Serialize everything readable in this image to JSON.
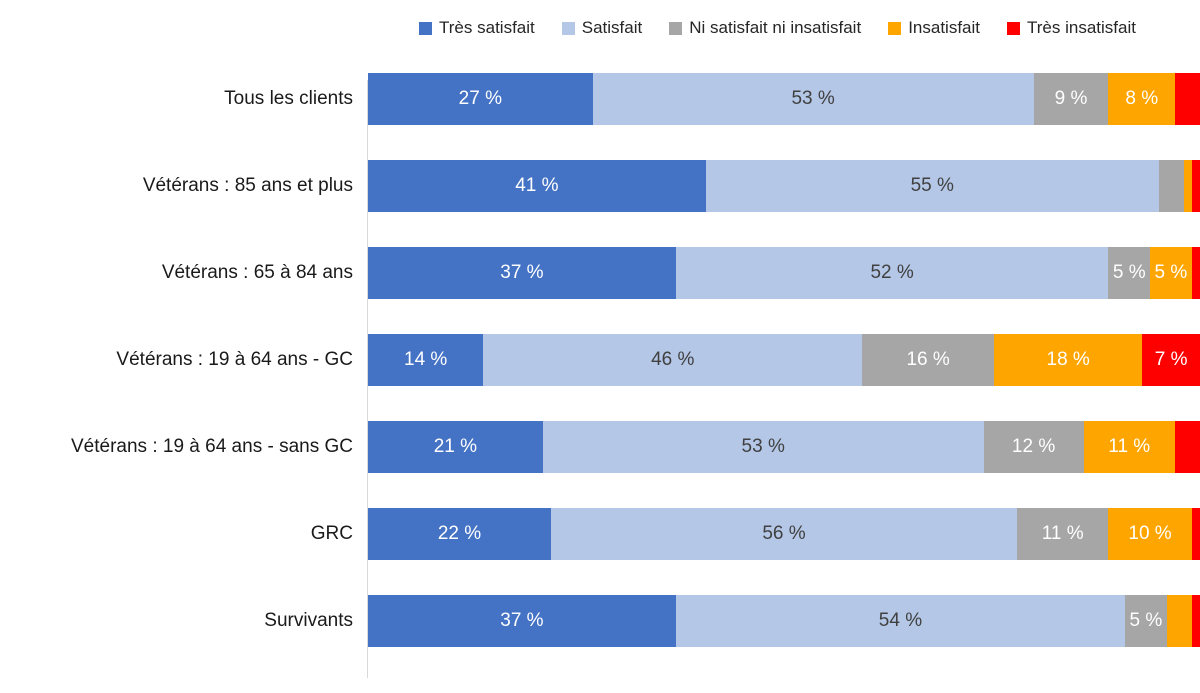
{
  "page": {
    "background": "#FFFFFF"
  },
  "legend": [
    {
      "label": "Très satisfait",
      "color": "#4472C4",
      "text_color": "#FFFFFF"
    },
    {
      "label": "Satisfait",
      "color": "#B4C7E7",
      "text_color": "#404040"
    },
    {
      "label": "Ni satisfait ni insatisfait",
      "color": "#A6A6A6",
      "text_color": "#FFFFFF"
    },
    {
      "label": "Insatisfait",
      "color": "#FFA500",
      "text_color": "#FFFFFF"
    },
    {
      "label": "Très insatisfait",
      "color": "#FF0000",
      "text_color": "#FFFFFF"
    }
  ],
  "chart_data": {
    "type": "bar",
    "orientation": "horizontal",
    "stacked": true,
    "units": "percent",
    "xlim": [
      0,
      100
    ],
    "grid": false,
    "legend_position": "top",
    "categories": [
      "Tous les clients",
      "Vétérans : 85 ans et plus",
      "Vétérans : 65 à 84 ans",
      "Vétérans : 19 à 64 ans - GC",
      "Vétérans : 19 à 64 ans - sans GC",
      "GRC",
      "Survivants"
    ],
    "series": [
      {
        "name": "Très satisfait",
        "values": [
          27,
          41,
          37,
          14,
          21,
          22,
          37
        ],
        "labels": [
          "27 %",
          "41 %",
          "37 %",
          "14 %",
          "21 %",
          "22 %",
          "37 %"
        ]
      },
      {
        "name": "Satisfait",
        "values": [
          53,
          55,
          52,
          46,
          53,
          56,
          54
        ],
        "labels": [
          "53 %",
          "55 %",
          "52 %",
          "46 %",
          "53 %",
          "56 %",
          "54 %"
        ]
      },
      {
        "name": "Ni satisfait ni insatisfait",
        "values": [
          9,
          3,
          5,
          16,
          12,
          11,
          5
        ],
        "labels": [
          "9 %",
          "",
          "5 %",
          "16 %",
          "12 %",
          "11 %",
          "5 %"
        ]
      },
      {
        "name": "Insatisfait",
        "values": [
          8,
          1,
          5,
          18,
          11,
          10,
          3
        ],
        "labels": [
          "8 %",
          "",
          "5 %",
          "18 %",
          "11 %",
          "10 %",
          ""
        ]
      },
      {
        "name": "Très insatisfait",
        "values": [
          3,
          1,
          1,
          7,
          3,
          1,
          1
        ],
        "labels": [
          "",
          "",
          "",
          "7 %",
          "",
          "",
          ""
        ]
      }
    ]
  }
}
